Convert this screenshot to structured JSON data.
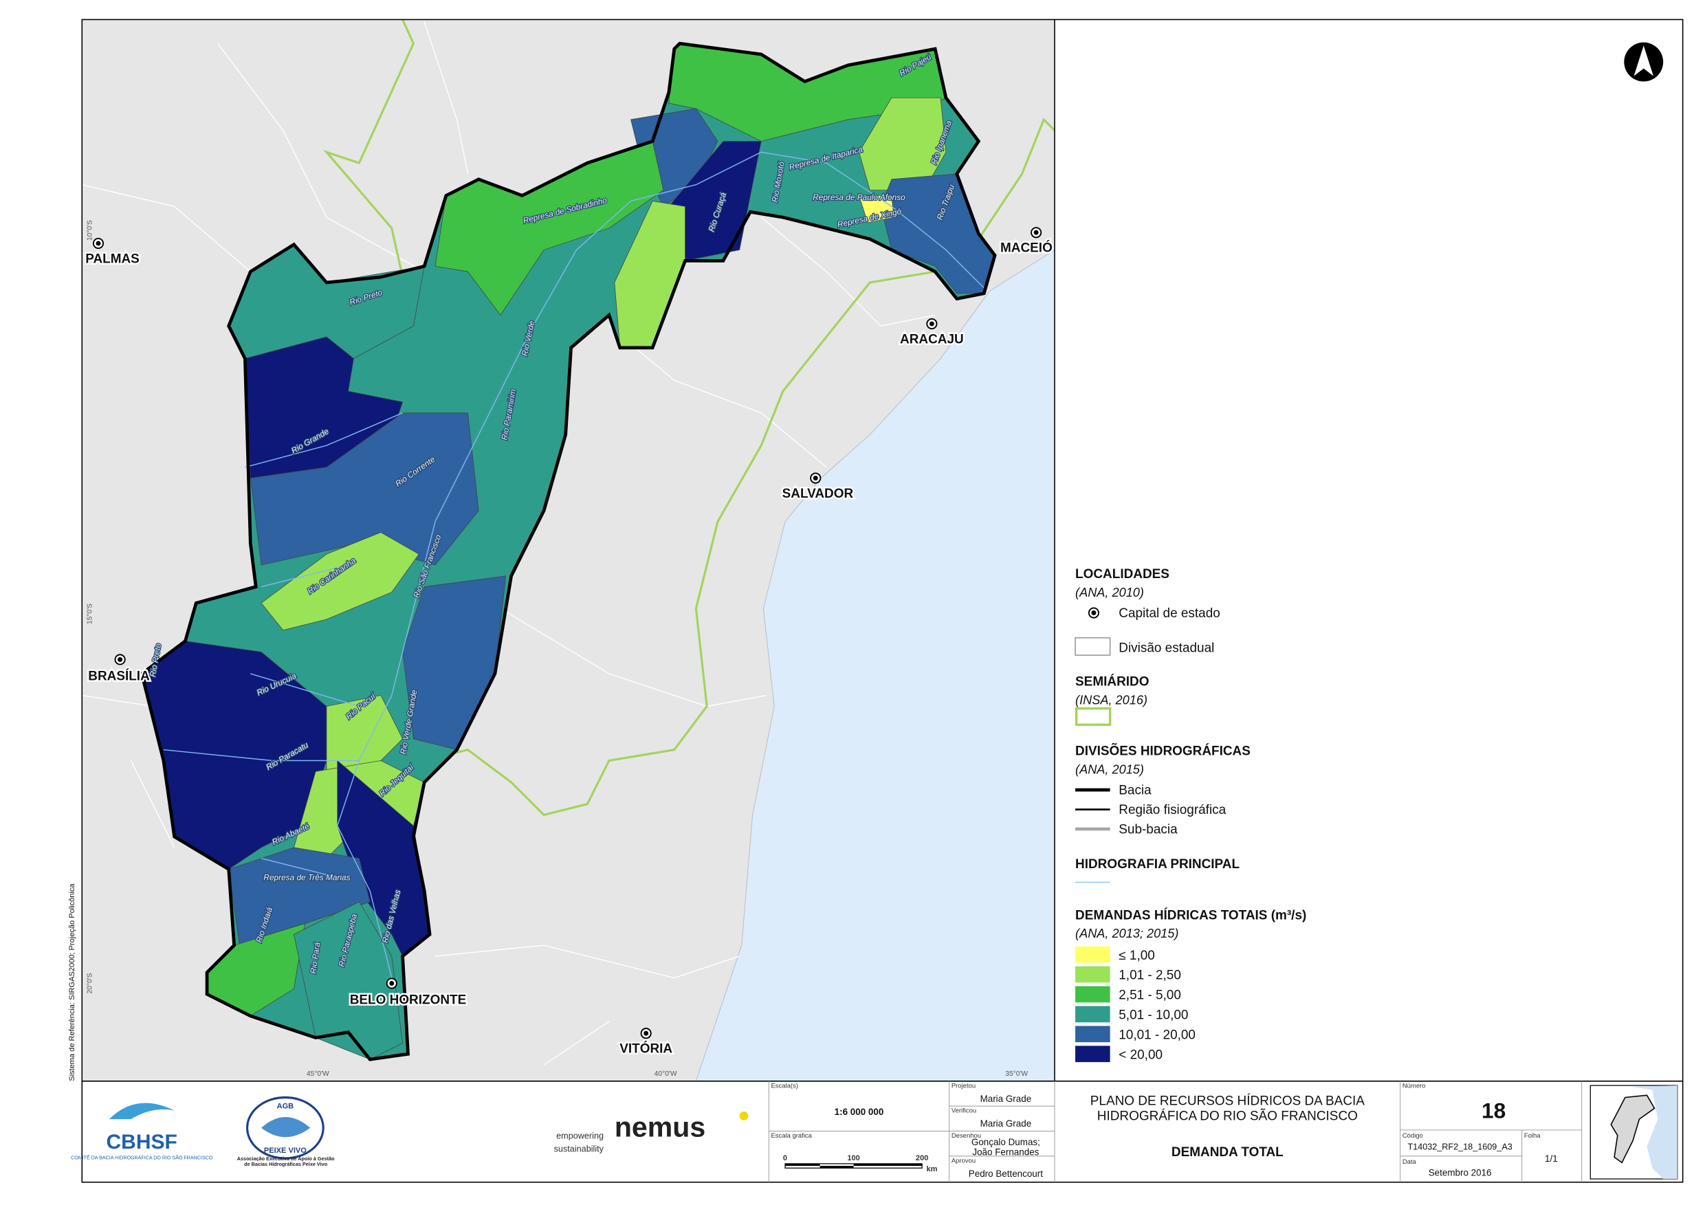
{
  "map": {
    "cities": [
      "PALMAS",
      "MACEIÓ",
      "ARACAJU",
      "SALVADOR",
      "BRASÍLIA",
      "BELO HORIZONTE",
      "VITÓRIA"
    ],
    "rivers": [
      "Rio Pajeú",
      "Represa de Itaparica",
      "Rio Ipanema",
      "Rio Moxotó",
      "Represa de Paulo Afonso",
      "Represa de Xingó",
      "Rio Traipu",
      "Rio Curaçá",
      "Represa de Sobradinho",
      "Rio Preto",
      "Rio Verde",
      "Rio Paramirim",
      "Rio Grande",
      "Rio Corrente",
      "Rio São Francisco",
      "Rio Carinhanha",
      "Rio Urucuia",
      "Rio Preto",
      "Rio Pacuí",
      "Rio Verde Grande",
      "Rio Paracatu",
      "Rio Jequitaí",
      "Rio Abaeté",
      "Represa de Três Marias",
      "Rio Indaiá",
      "Rio Pará",
      "Rio Paraopeba",
      "Rio das Velhas"
    ],
    "coordinates": [
      "10°0'S",
      "15°0'S",
      "20°0'S",
      "45°0'W",
      "40°0'W",
      "35°0'W"
    ],
    "reference": "Sistema de Referência: SIRGAS2000; Projeção Policônica"
  },
  "legend": {
    "localidades": {
      "title": "LOCALIDADES",
      "source": "(ANA, 2010)",
      "items": [
        "Capital de estado",
        "Divisão estadual"
      ]
    },
    "semiarido": {
      "title": "SEMIÁRIDO",
      "source": "(INSA, 2016)"
    },
    "divisoes": {
      "title": "DIVISÕES HIDROGRÁFICAS",
      "source": "(ANA, 2015)",
      "items": [
        "Bacia",
        "Região fisiográfica",
        "Sub-bacia"
      ]
    },
    "hidrografia": {
      "title": "HIDROGRAFIA PRINCIPAL"
    },
    "demandas": {
      "title": "DEMANDAS HÍDRICAS TOTAIS (m³/s)",
      "source": "(ANA, 2013; 2015)",
      "classes": [
        {
          "label": "≤ 1,00",
          "color": "#ffff66"
        },
        {
          "label": "1,01 - 2,50",
          "color": "#9be356"
        },
        {
          "label": "2,51 - 5,00",
          "color": "#3fc145"
        },
        {
          "label": "5,01 - 10,00",
          "color": "#2f9d8c"
        },
        {
          "label": "10,01 - 20,00",
          "color": "#2e62a0"
        },
        {
          "label": "< 20,00",
          "color": "#0e1878"
        }
      ]
    }
  },
  "title_block": {
    "logos": {
      "cbhsf": "CBHSF",
      "cbhsf_sub": "COMITÊ DA BACIA HIDROGRÁFICA DO RIO SÃO FRANCISCO",
      "agb": "AGB",
      "agb_name": "PEIXE VIVO",
      "agb_sub": "Associação Executiva de Apoio à Gestão de Bacias Hidrográficas Peixe Vivo",
      "nemus_tag": "empowering sustainability",
      "nemus": "nemus"
    },
    "scale_label": "Escala(s)",
    "scale": "1:6 000 000",
    "graphic_scale_label": "Escala gráfica",
    "graphic_scale": [
      "0",
      "100",
      "200",
      "km"
    ],
    "projetou_label": "Projetou",
    "projetou": "Maria Grade",
    "verificou_label": "Verificou",
    "verificou": "Maria Grade",
    "desenhou_label": "Desenhou",
    "desenhou": [
      "Gonçalo Dumas;",
      "João Fernandes"
    ],
    "aprovou_label": "Aprovou",
    "aprovou": "Pedro Bettencourt",
    "title": [
      "PLANO DE RECURSOS HÍDRICOS DA BACIA",
      "HIDROGRÁFICA DO RIO SÃO FRANCISCO"
    ],
    "subtitle": "DEMANDA TOTAL",
    "numero_label": "Número",
    "numero": "18",
    "codigo_label": "Código",
    "codigo": "T14032_RF2_18_1609_A3",
    "folha_label": "Folha",
    "folha": "1/1",
    "data_label": "Data",
    "data": "Setembro 2016"
  }
}
